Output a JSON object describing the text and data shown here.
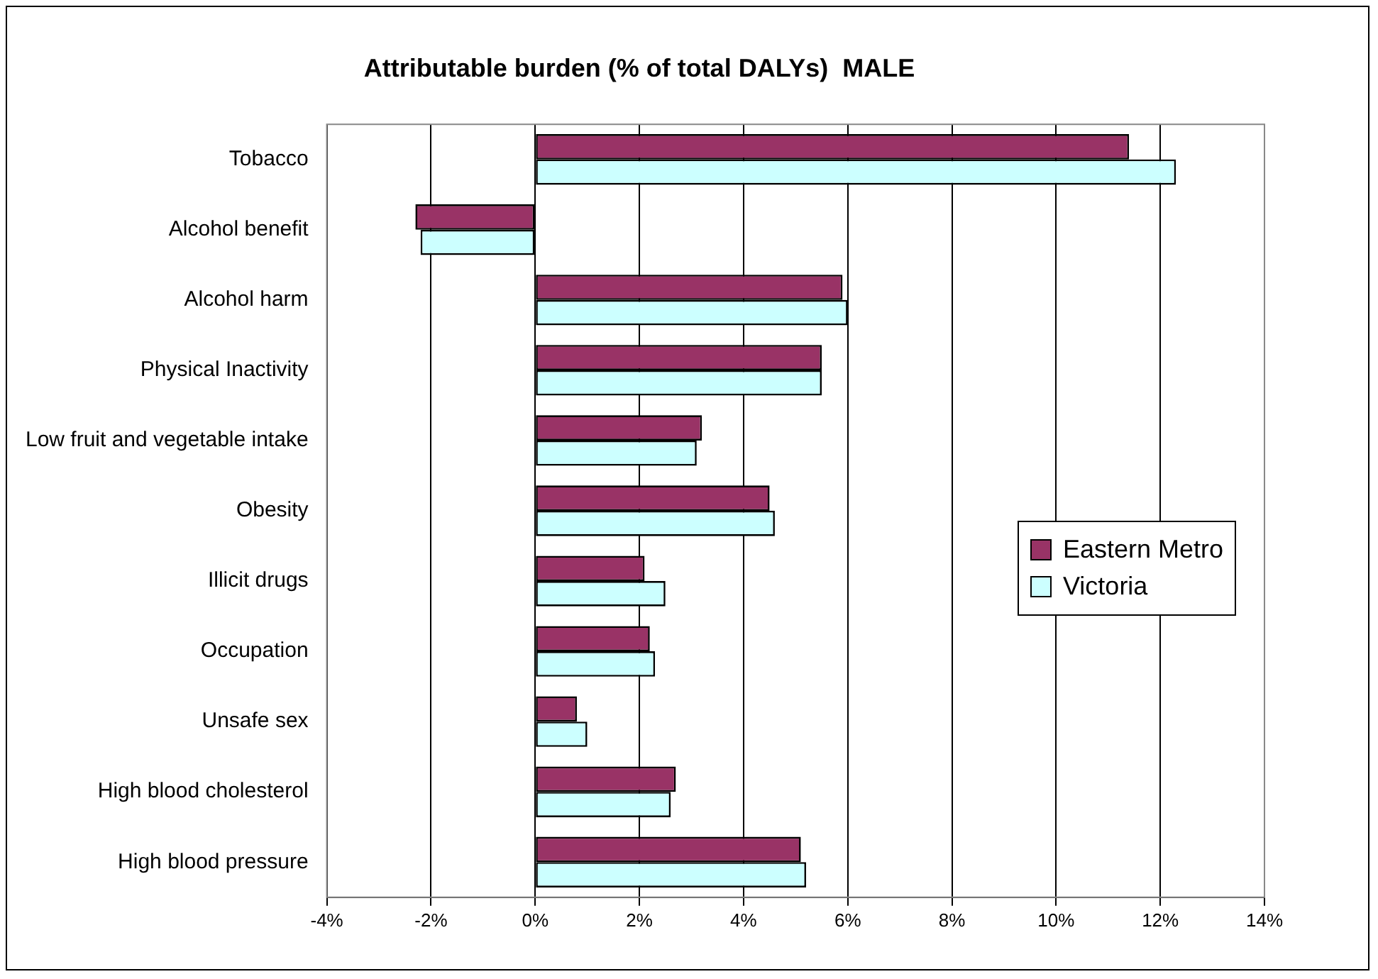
{
  "chart_data": {
    "type": "bar",
    "orientation": "horizontal",
    "title": "Attributable burden (% of total DALYs)  MALE",
    "categories": [
      "Tobacco",
      "Alcohol benefit",
      "Alcohol harm",
      "Physical Inactivity",
      "Low fruit and vegetable intake",
      "Obesity",
      "Illicit drugs",
      "Occupation",
      "Unsafe sex",
      "High blood cholesterol",
      "High blood pressure"
    ],
    "series": [
      {
        "name": "Eastern Metro",
        "color": "#993366",
        "values": [
          11.4,
          -2.3,
          5.9,
          5.5,
          3.2,
          4.5,
          2.1,
          2.2,
          0.8,
          2.7,
          5.1
        ]
      },
      {
        "name": "Victoria",
        "color": "#ccffff",
        "values": [
          12.3,
          -2.2,
          6.0,
          5.5,
          3.1,
          4.6,
          2.5,
          2.3,
          1.0,
          2.6,
          5.2
        ]
      }
    ],
    "xlim": [
      -4,
      14
    ],
    "xticks": [
      {
        "value": -4,
        "label": "-4%"
      },
      {
        "value": -2,
        "label": "-2%"
      },
      {
        "value": 0,
        "label": "0%"
      },
      {
        "value": 2,
        "label": "2%"
      },
      {
        "value": 4,
        "label": "4%"
      },
      {
        "value": 6,
        "label": "6%"
      },
      {
        "value": 8,
        "label": "8%"
      },
      {
        "value": 10,
        "label": "10%"
      },
      {
        "value": 12,
        "label": "12%"
      },
      {
        "value": 14,
        "label": "14%"
      }
    ],
    "grid": "x",
    "legend": "right"
  }
}
